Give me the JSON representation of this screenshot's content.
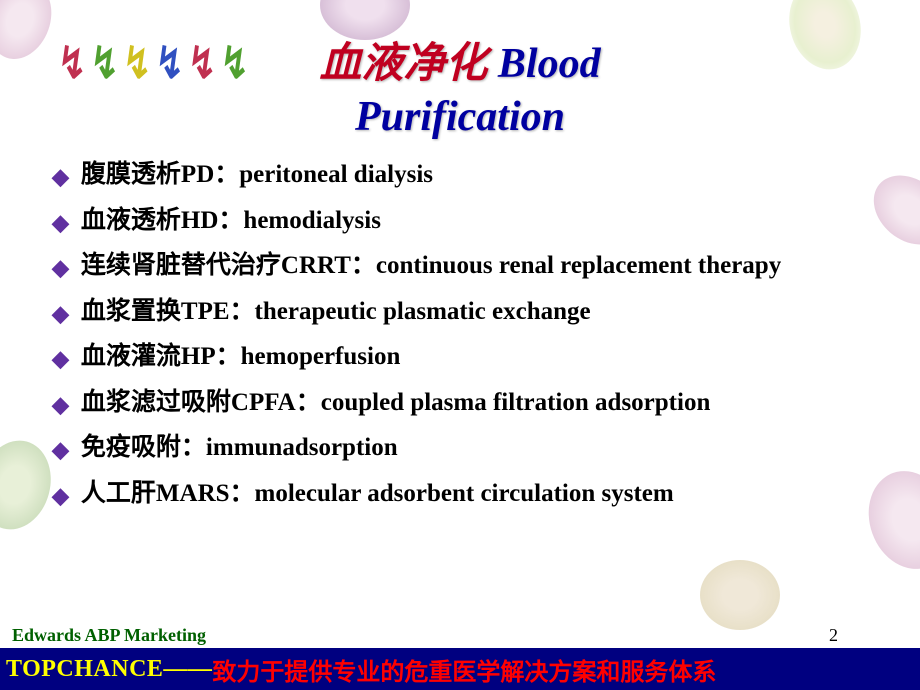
{
  "title": {
    "cn": "血液净化",
    "en_line1": "Blood",
    "en_line2": "Purification"
  },
  "bullets": [
    "腹膜透析PD：peritoneal dialysis",
    "血液透析HD：hemodialysis",
    "连续肾脏替代治疗CRRT：continuous renal replacement therapy",
    "血浆置换TPE：therapeutic plasmatic exchange",
    "血液灌流HP：hemoperfusion",
    "血浆滤过吸附CPFA：coupled plasma filtration adsorption",
    "免疫吸附：immunadsorption",
    "人工肝MARS：molecular adsorbent circulation system"
  ],
  "footer": {
    "left": "Edwards  ABP Marketing",
    "page": "2",
    "brand": "TOPCHANCE——",
    "tagline": "致力于提供专业的危重医学解决方案和服务体系"
  },
  "colors": {
    "title_cn": "#c00020",
    "title_en": "#0000a0",
    "bullet_icon": "#6030a0",
    "footer_left": "#006000",
    "footer_bg": "#000080",
    "brand": "#ffff00",
    "tagline": "#ff0000"
  }
}
